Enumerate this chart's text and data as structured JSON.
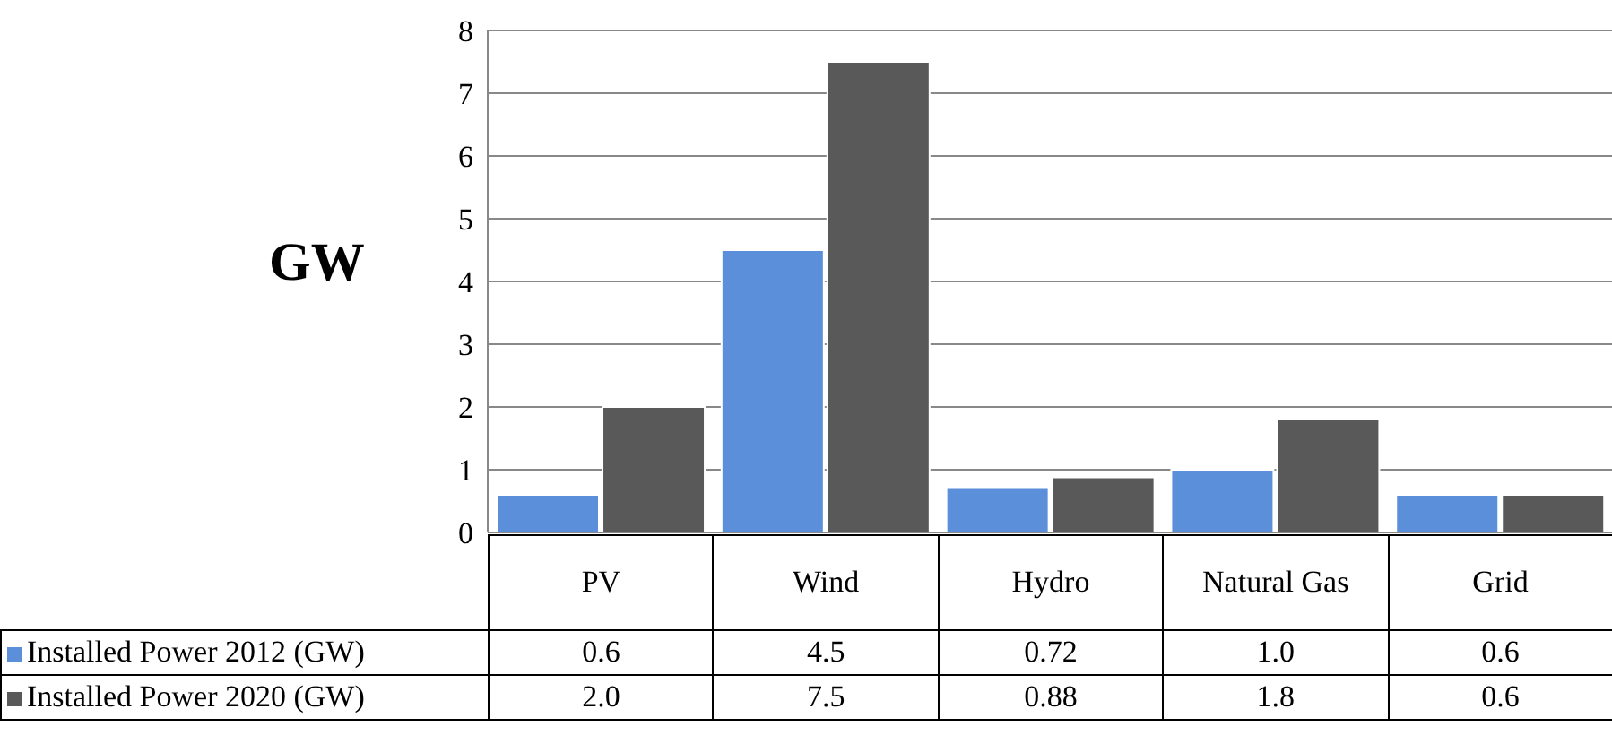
{
  "chart_data": {
    "type": "bar",
    "ylabel": "GW",
    "categories": [
      "PV",
      "Wind",
      "Hydro",
      "Natural Gas",
      "Grid"
    ],
    "series": [
      {
        "name": "Installed Power 2012 (GW)",
        "color": "#5b8fd9",
        "values": [
          0.6,
          4.5,
          0.72,
          1.0,
          0.6
        ],
        "value_labels": [
          "0.6",
          "4.5",
          "0.72",
          "1.0",
          "0.6"
        ]
      },
      {
        "name": "Installed Power 2020 (GW)",
        "color": "#595959",
        "values": [
          2.0,
          7.5,
          0.88,
          1.8,
          0.6
        ],
        "value_labels": [
          "2.0",
          "7.5",
          "0.88",
          "1.8",
          "0.6"
        ]
      }
    ],
    "ylim": [
      0,
      8
    ],
    "yticks": [
      0,
      1,
      2,
      3,
      4,
      5,
      6,
      7,
      8
    ],
    "grid": "y",
    "legend": "bottom"
  }
}
